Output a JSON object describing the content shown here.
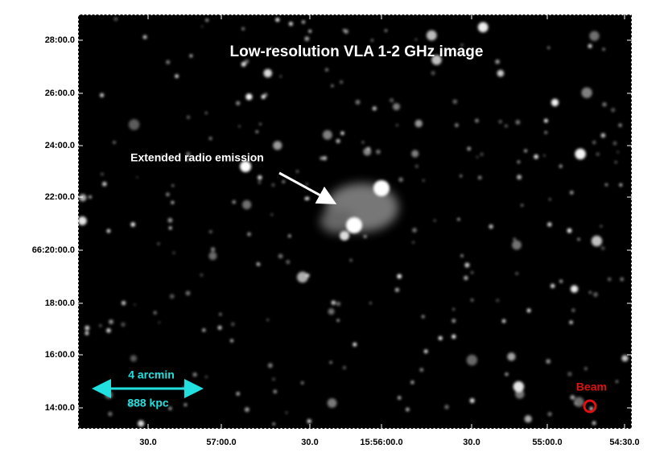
{
  "title": "Low-resolution VLA 1-2 GHz image",
  "annotation": "Extended radio emission",
  "scale_bar": {
    "angle": "4 arcmin",
    "distance": "888 kpc"
  },
  "beam_label": "Beam",
  "axes": {
    "y_ticks": [
      "28:00.0",
      "26:00.0",
      "24:00.0",
      "22:00.0",
      "66:20:00.0",
      "18:00.0",
      "16:00.0",
      "14:00.0"
    ],
    "x_ticks": [
      "30.0",
      "57:00.0",
      "30.0",
      "15:56:00.0",
      "30.0",
      "55:00.0",
      "54:30.0"
    ]
  }
}
